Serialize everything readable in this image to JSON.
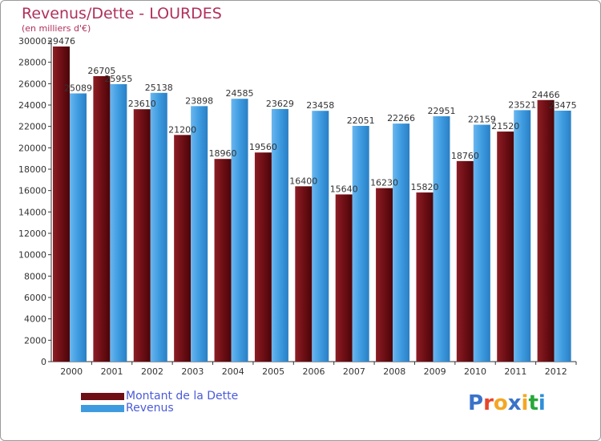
{
  "title": "Revenus/Dette - LOURDES",
  "subtitle": "(en milliers d'€)",
  "logo_text": "Proxiti",
  "logo_colors": [
    "#3a73c9",
    "#e8442a",
    "#f5a623",
    "#3a73c9",
    "#f5a623",
    "#27a83a",
    "#2f8fd8"
  ],
  "colors": {
    "accent": "#b0305a",
    "dette": "#6e0f15",
    "revenus": "#3e9be0",
    "legend_text": "#4a5bd8"
  },
  "legend": [
    {
      "label": "Montant de la Dette",
      "color": "#6e0f15"
    },
    {
      "label": "Revenus",
      "color": "#3e9be0"
    }
  ],
  "chart_data": {
    "type": "bar",
    "title": "Revenus/Dette - LOURDES",
    "subtitle": "(en milliers d'€)",
    "categories": [
      "2000",
      "2001",
      "2002",
      "2003",
      "2004",
      "2005",
      "2006",
      "2007",
      "2008",
      "2009",
      "2010",
      "2011",
      "2012"
    ],
    "series": [
      {
        "name": "Montant de la Dette",
        "values": [
          29476,
          26705,
          23610,
          21200,
          18960,
          19560,
          16400,
          15640,
          16230,
          15820,
          18760,
          21520,
          24466
        ],
        "labels": [
          "29476",
          "26705",
          "23610",
          "21200",
          "18960",
          "19560",
          "16400",
          "15640",
          "16230",
          "15820",
          "18760",
          "21520",
          "24466"
        ]
      },
      {
        "name": "Revenus",
        "values": [
          25089,
          25955,
          25138,
          23898,
          24585,
          23629,
          23458,
          22051,
          22266,
          22951,
          22159,
          23521,
          23475
        ],
        "labels": [
          "25089",
          "25955",
          "25138",
          "23898",
          "24585",
          "23629",
          "23458",
          "22051",
          "22266",
          "22951",
          "22159",
          "23521",
          "23475"
        ]
      }
    ],
    "ylim": [
      0,
      30000
    ],
    "yticks": [
      "0",
      "2000",
      "4000",
      "6000",
      "8000",
      "10000",
      "12000",
      "14000",
      "16000",
      "18000",
      "20000",
      "22000",
      "24000",
      "26000",
      "28000",
      "30000"
    ],
    "grid": false,
    "legend_position": "bottom-left"
  }
}
